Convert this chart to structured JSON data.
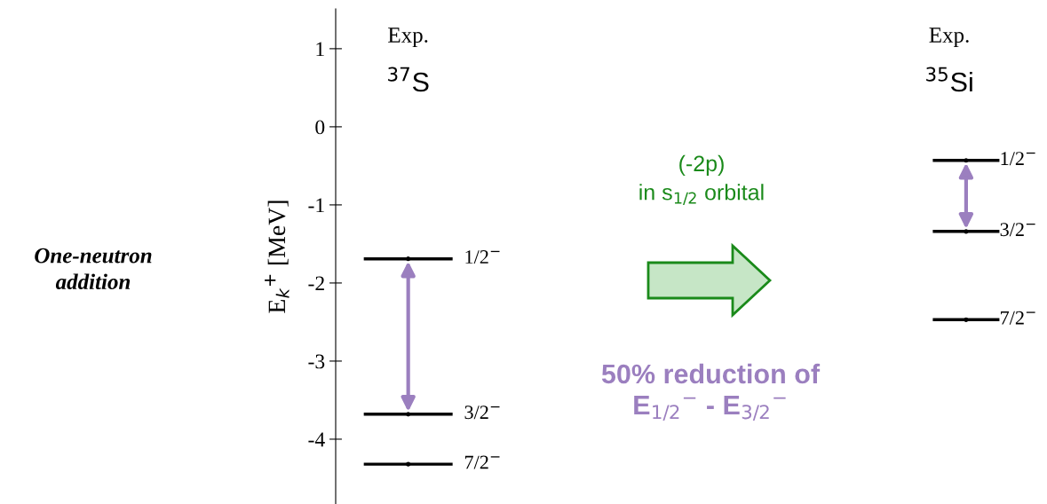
{
  "chart_data": {
    "type": "scatter",
    "ylabel": "E$_{k}$$^{+}$ [MeV]",
    "categories": [
      "$^{37}$S",
      "$^{35}$Si"
    ],
    "series": [
      {
        "name": "1/2$^{−}$",
        "color": "#000000",
        "values": [
          -1.69,
          -0.43
        ]
      },
      {
        "name": "3/2$^{−}$",
        "color": "#000000",
        "values": [
          -3.68,
          -1.34
        ]
      },
      {
        "name": "7/2$^{−}$",
        "color": "#000000",
        "values": [
          -4.32,
          -2.47
        ]
      }
    ],
    "ylim": [
      -4.83,
      1.51
    ],
    "yticks": [
      1,
      0,
      -1,
      -2,
      -3,
      -4
    ],
    "grid": false,
    "legend": "bottom left",
    "annotations": [
      "Exp.",
      "Exp.",
      "One-neutron\naddition",
      "(-2p)\nin s$_{1/2}$ orbital",
      "50% reduction of\nE$_{1/2}$$^{−}$ - E$_{3/2}$$^{−}$"
    ]
  }
}
